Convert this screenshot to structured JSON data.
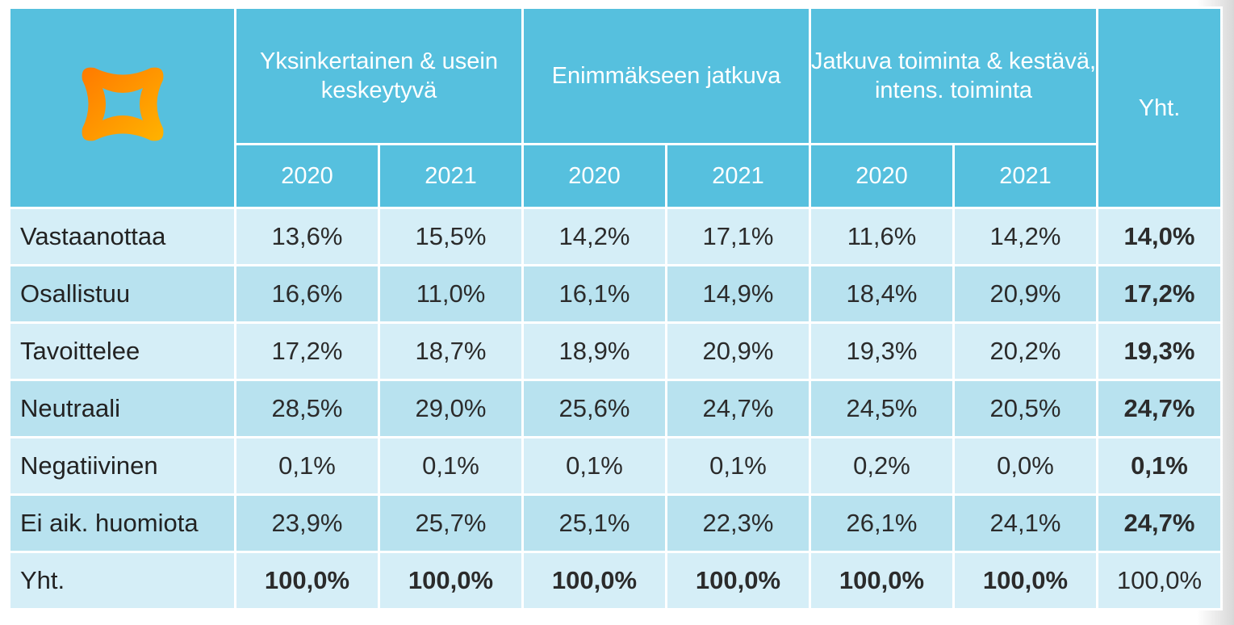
{
  "table": {
    "groups": [
      "Yksinkertainen & usein keskeytyvä",
      "Enimmäkseen jatkuva",
      "Jatkuva toiminta & kestävä, intens. toiminta"
    ],
    "total_header": "Yht.",
    "years": [
      "2020",
      "2021",
      "2020",
      "2021",
      "2020",
      "2021"
    ],
    "rows": [
      {
        "label": "Vastaanottaa",
        "values": [
          "13,6%",
          "15,5%",
          "14,2%",
          "17,1%",
          "11,6%",
          "14,2%"
        ],
        "total": "14,0%"
      },
      {
        "label": "Osallistuu",
        "values": [
          "16,6%",
          "11,0%",
          "16,1%",
          "14,9%",
          "18,4%",
          "20,9%"
        ],
        "total": "17,2%"
      },
      {
        "label": "Tavoittelee",
        "values": [
          "17,2%",
          "18,7%",
          "18,9%",
          "20,9%",
          "19,3%",
          "20,2%"
        ],
        "total": "19,3%"
      },
      {
        "label": "Neutraali",
        "values": [
          "28,5%",
          "29,0%",
          "25,6%",
          "24,7%",
          "24,5%",
          "20,5%"
        ],
        "total": "24,7%"
      },
      {
        "label": "Negatiivinen",
        "values": [
          "0,1%",
          "0,1%",
          "0,1%",
          "0,1%",
          "0,2%",
          "0,0%"
        ],
        "total": "0,1%"
      },
      {
        "label": "Ei aik. huomiota",
        "values": [
          "23,9%",
          "25,7%",
          "25,1%",
          "22,3%",
          "26,1%",
          "24,1%"
        ],
        "total": "24,7%"
      },
      {
        "label": "Yht.",
        "values": [
          "100,0%",
          "100,0%",
          "100,0%",
          "100,0%",
          "100,0%",
          "100,0%"
        ],
        "total": "100,0%"
      }
    ]
  }
}
